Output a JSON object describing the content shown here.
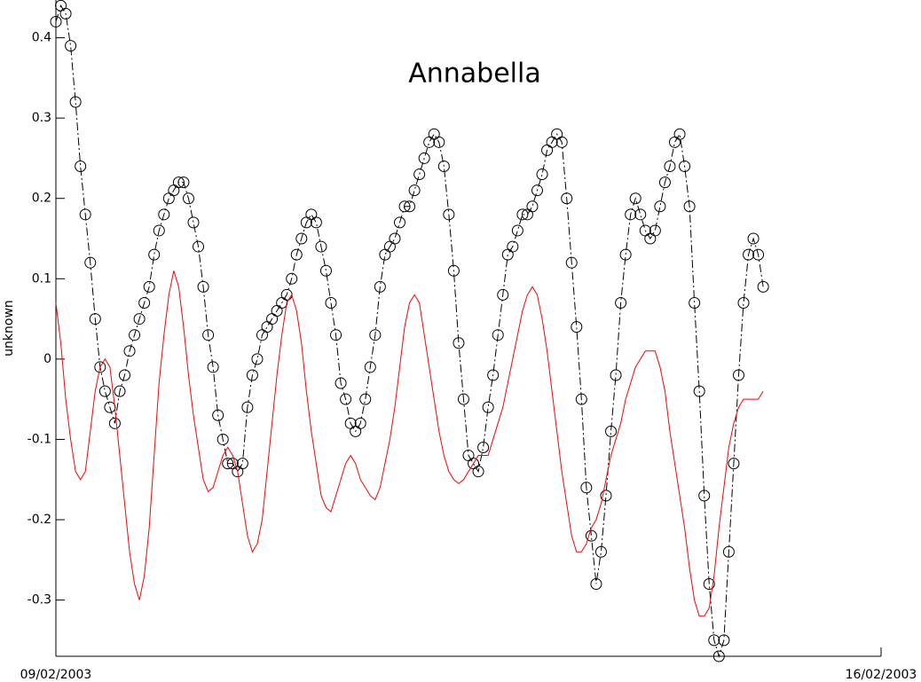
{
  "chart_data": {
    "type": "line",
    "title": "Annabella",
    "y_label": "unknown",
    "x": [
      0,
      0.0417,
      0.0833,
      0.125,
      0.1667,
      0.2083,
      0.25,
      0.2917,
      0.3333,
      0.375,
      0.4167,
      0.4583,
      0.5,
      0.5417,
      0.5833,
      0.625,
      0.6667,
      0.7083,
      0.75,
      0.7917,
      0.8333,
      0.875,
      0.9167,
      0.9583,
      1,
      1.0417,
      1.0833,
      1.125,
      1.1667,
      1.2083,
      1.25,
      1.2917,
      1.3333,
      1.375,
      1.4167,
      1.4583,
      1.5,
      1.5417,
      1.5833,
      1.625,
      1.6667,
      1.7083,
      1.75,
      1.7917,
      1.8333,
      1.875,
      1.9167,
      1.9583,
      2,
      2.0417,
      2.0833,
      2.125,
      2.1667,
      2.2083,
      2.25,
      2.2917,
      2.3333,
      2.375,
      2.4167,
      2.4583,
      2.5,
      2.5417,
      2.5833,
      2.625,
      2.6667,
      2.7083,
      2.75,
      2.7917,
      2.8333,
      2.875,
      2.9167,
      2.9583,
      3,
      3.0417,
      3.0833,
      3.125,
      3.1667,
      3.2083,
      3.25,
      3.2917,
      3.3333,
      3.375,
      3.4167,
      3.4583,
      3.5,
      3.5417,
      3.5833,
      3.625,
      3.6667,
      3.7083,
      3.75,
      3.7917,
      3.8333,
      3.875,
      3.9167,
      3.9583,
      4,
      4.0417,
      4.0833,
      4.125,
      4.1667,
      4.2083,
      4.25,
      4.2917,
      4.3333,
      4.375,
      4.4167,
      4.4583,
      4.5,
      4.5417,
      4.5833,
      4.625,
      4.6667,
      4.7083,
      4.75,
      4.7917,
      4.8333,
      4.875,
      4.9167,
      4.9583,
      5,
      5.0417,
      5.0833,
      5.125,
      5.1667,
      5.2083,
      5.25,
      5.2917,
      5.3333,
      5.375,
      5.4167,
      5.4583,
      5.5,
      5.5417,
      5.5833,
      5.625,
      5.6667,
      5.7083,
      5.75,
      5.7917,
      5.8333,
      5.875,
      5.9167,
      5.9583,
      6
    ],
    "series": [
      {
        "color": "#000000",
        "marker": "circle",
        "dash": "dashdot",
        "values": [
          0.42,
          0.44,
          0.43,
          0.39,
          0.32,
          0.24,
          0.18,
          0.12,
          0.05,
          -0.01,
          -0.04,
          -0.06,
          -0.08,
          -0.04,
          -0.02,
          0.01,
          0.03,
          0.05,
          0.07,
          0.09,
          0.13,
          0.16,
          0.18,
          0.2,
          0.21,
          0.22,
          0.22,
          0.2,
          0.17,
          0.14,
          0.09,
          0.03,
          -0.01,
          -0.07,
          -0.1,
          -0.13,
          -0.13,
          -0.14,
          -0.13,
          -0.06,
          -0.02,
          0,
          0.03,
          0.04,
          0.05,
          0.06,
          0.07,
          0.08,
          0.1,
          0.13,
          0.15,
          0.17,
          0.18,
          0.17,
          0.14,
          0.11,
          0.07,
          0.03,
          -0.03,
          -0.05,
          -0.08,
          -0.09,
          -0.08,
          -0.05,
          -0.01,
          0.03,
          0.09,
          0.13,
          0.14,
          0.15,
          0.17,
          0.19,
          0.19,
          0.21,
          0.23,
          0.25,
          0.27,
          0.28,
          0.27,
          0.24,
          0.18,
          0.11,
          0.02,
          -0.05,
          -0.12,
          -0.13,
          -0.14,
          -0.11,
          -0.06,
          -0.02,
          0.03,
          0.08,
          0.13,
          0.14,
          0.16,
          0.18,
          0.18,
          0.19,
          0.21,
          0.23,
          0.26,
          0.27,
          0.28,
          0.27,
          0.2,
          0.12,
          0.04,
          -0.05,
          -0.16,
          -0.22,
          -0.28,
          -0.24,
          -0.17,
          -0.09,
          -0.02,
          0.07,
          0.13,
          0.18,
          0.2,
          0.18,
          0.16,
          0.15,
          0.16,
          0.19,
          0.22,
          0.24,
          0.27,
          0.28,
          0.24,
          0.19,
          0.07,
          -0.04,
          -0.17,
          -0.28,
          -0.35,
          -0.37,
          -0.35,
          -0.24,
          -0.13,
          -0.02,
          0.07,
          0.13,
          0.15,
          0.13,
          0.09
        ]
      },
      {
        "color": "#ff0000",
        "marker": "none",
        "dash": "solid",
        "values": [
          0.07,
          0.02,
          -0.05,
          -0.1,
          -0.14,
          -0.15,
          -0.14,
          -0.09,
          -0.04,
          -0.01,
          0,
          -0.01,
          -0.06,
          -0.12,
          -0.18,
          -0.24,
          -0.28,
          -0.3,
          -0.27,
          -0.21,
          -0.12,
          -0.03,
          0.03,
          0.08,
          0.11,
          0.09,
          0.04,
          -0.02,
          -0.07,
          -0.11,
          -0.15,
          -0.165,
          -0.16,
          -0.14,
          -0.12,
          -0.11,
          -0.12,
          -0.14,
          -0.18,
          -0.22,
          -0.24,
          -0.23,
          -0.2,
          -0.14,
          -0.08,
          -0.02,
          0.03,
          0.07,
          0.08,
          0.06,
          0.02,
          -0.04,
          -0.09,
          -0.13,
          -0.17,
          -0.185,
          -0.19,
          -0.17,
          -0.15,
          -0.13,
          -0.12,
          -0.13,
          -0.15,
          -0.16,
          -0.17,
          -0.175,
          -0.16,
          -0.13,
          -0.1,
          -0.06,
          -0.01,
          0.04,
          0.07,
          0.08,
          0.07,
          0.03,
          -0.01,
          -0.05,
          -0.09,
          -0.12,
          -0.14,
          -0.15,
          -0.155,
          -0.15,
          -0.14,
          -0.13,
          -0.12,
          -0.12,
          -0.12,
          -0.1,
          -0.08,
          -0.06,
          -0.03,
          0,
          0.03,
          0.06,
          0.08,
          0.09,
          0.08,
          0.05,
          0.01,
          -0.04,
          -0.09,
          -0.14,
          -0.18,
          -0.22,
          -0.24,
          -0.24,
          -0.23,
          -0.21,
          -0.2,
          -0.18,
          -0.15,
          -0.12,
          -0.1,
          -0.08,
          -0.05,
          -0.03,
          -0.01,
          0,
          0.01,
          0.01,
          0.01,
          -0.01,
          -0.04,
          -0.09,
          -0.13,
          -0.17,
          -0.21,
          -0.26,
          -0.3,
          -0.32,
          -0.32,
          -0.31,
          -0.27,
          -0.21,
          -0.16,
          -0.11,
          -0.08,
          -0.06,
          -0.05,
          -0.05,
          -0.05,
          -0.05,
          -0.04
        ]
      }
    ],
    "xlim": [
      0,
      7
    ],
    "xticks": [
      {
        "value": 0,
        "label": "09/02/2003"
      },
      {
        "value": 7,
        "label": "16/02/2003"
      }
    ],
    "ylim": [
      -0.37,
      0.447
    ],
    "yticks": [
      -0.3,
      -0.2,
      -0.1,
      0,
      0.1,
      0.2,
      0.3,
      0.4
    ],
    "grid": false
  }
}
